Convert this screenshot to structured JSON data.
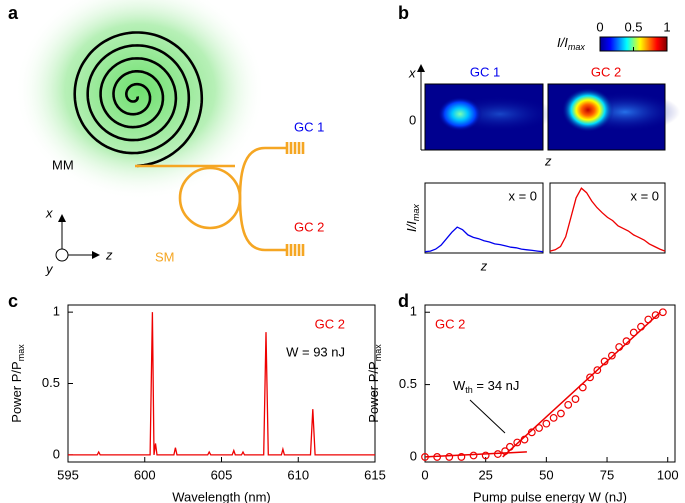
{
  "panel_labels": [
    "a",
    "b",
    "c",
    "d"
  ],
  "diagram": {
    "mm": "MM",
    "sm": "SM",
    "gc1": "GC 1",
    "gc2": "GC 2",
    "axes": {
      "x": "x",
      "y": "y",
      "z": "z"
    }
  },
  "intensity": {
    "colorbar": {
      "label": "I/I",
      "label_sub": "max",
      "clim": [
        0,
        1
      ],
      "ticks": [
        0,
        0.5,
        1
      ]
    },
    "maps": [
      "GC 1",
      "GC 2"
    ],
    "x_label": "x",
    "x_tick": 0,
    "z_label": "z"
  },
  "chart_data": [
    {
      "type": "line",
      "ylabel": "I/I",
      "ylabel_sub": "max",
      "xlabel": "z",
      "annotation": "x = 0",
      "color": "#0000ee",
      "ylim": [
        0,
        1.08
      ],
      "values": [
        0.02,
        0.03,
        0.06,
        0.12,
        0.22,
        0.32,
        0.4,
        0.36,
        0.28,
        0.24,
        0.22,
        0.19,
        0.17,
        0.14,
        0.13,
        0.11,
        0.09,
        0.08,
        0.06,
        0.05,
        0.04,
        0.03,
        0.02
      ]
    },
    {
      "type": "line",
      "annotation": "x = 0",
      "color": "#ee0000",
      "ylim": [
        0,
        1.08
      ],
      "values": [
        0.03,
        0.05,
        0.1,
        0.25,
        0.55,
        0.85,
        1.0,
        0.93,
        0.8,
        0.7,
        0.62,
        0.55,
        0.5,
        0.42,
        0.38,
        0.34,
        0.28,
        0.24,
        0.2,
        0.14,
        0.1,
        0.06,
        0.03
      ]
    },
    {
      "type": "line",
      "title": "GC 2",
      "annotation": "W = 93 nJ",
      "ylabel": "Power P/P",
      "ylabel_sub": "max",
      "xlabel": "Wavelength (nm)",
      "color": "#ee0000",
      "xlim": [
        595,
        615
      ],
      "xticks": [
        595,
        600,
        605,
        610,
        615
      ],
      "ylim": [
        -0.05,
        1.05
      ],
      "yticks": [
        0,
        0.5,
        1
      ],
      "x": [
        595,
        596.9,
        597,
        597.1,
        600.35,
        600.5,
        600.6,
        600.7,
        600.8,
        601.9,
        602,
        602.1,
        604.1,
        604.2,
        604.3,
        605.7,
        605.8,
        605.9,
        606.3,
        606.4,
        606.5,
        607.75,
        607.9,
        608.05,
        608.9,
        609,
        609.1,
        610.8,
        610.95,
        611.1,
        615
      ],
      "values": [
        0,
        0,
        0.02,
        0,
        0,
        1,
        0,
        0.08,
        0,
        0,
        0.05,
        0,
        0,
        0.02,
        0,
        0,
        0.03,
        0,
        0,
        0.02,
        0,
        0,
        0.86,
        0,
        0,
        0.04,
        0,
        0,
        0.32,
        0,
        0
      ]
    },
    {
      "type": "scatter",
      "title": "GC 2",
      "annotation": "W",
      "annotation_sub": "th",
      "annotation_rest": " = 34 nJ",
      "ylabel": "Power P/P",
      "ylabel_sub": "max",
      "xlabel": "Pump pulse energy W (nJ)",
      "color": "#ee0000",
      "xlim": [
        0,
        103
      ],
      "xticks": [
        0,
        25,
        50,
        75,
        100
      ],
      "ylim": [
        -0.035,
        1.05
      ],
      "yticks": [
        0,
        0.5,
        1
      ],
      "x": [
        0,
        5,
        10,
        15,
        20,
        25,
        30,
        33,
        35,
        38,
        41,
        44,
        47,
        50,
        53,
        56,
        59,
        62,
        65,
        68,
        71,
        74,
        77,
        80,
        83,
        86,
        89,
        92,
        95,
        98
      ],
      "values": [
        0,
        0,
        0,
        0,
        0.01,
        0.01,
        0.02,
        0.04,
        0.07,
        0.1,
        0.12,
        0.17,
        0.2,
        0.23,
        0.27,
        0.3,
        0.36,
        0.4,
        0.48,
        0.55,
        0.6,
        0.66,
        0.7,
        0.76,
        0.8,
        0.86,
        0.9,
        0.95,
        0.98,
        1.0
      ],
      "fits": [
        {
          "x": [
            0,
            42
          ],
          "values": [
            0,
            0.035
          ]
        },
        {
          "x": [
            32,
            97
          ],
          "values": [
            0,
            1
          ]
        }
      ]
    }
  ]
}
